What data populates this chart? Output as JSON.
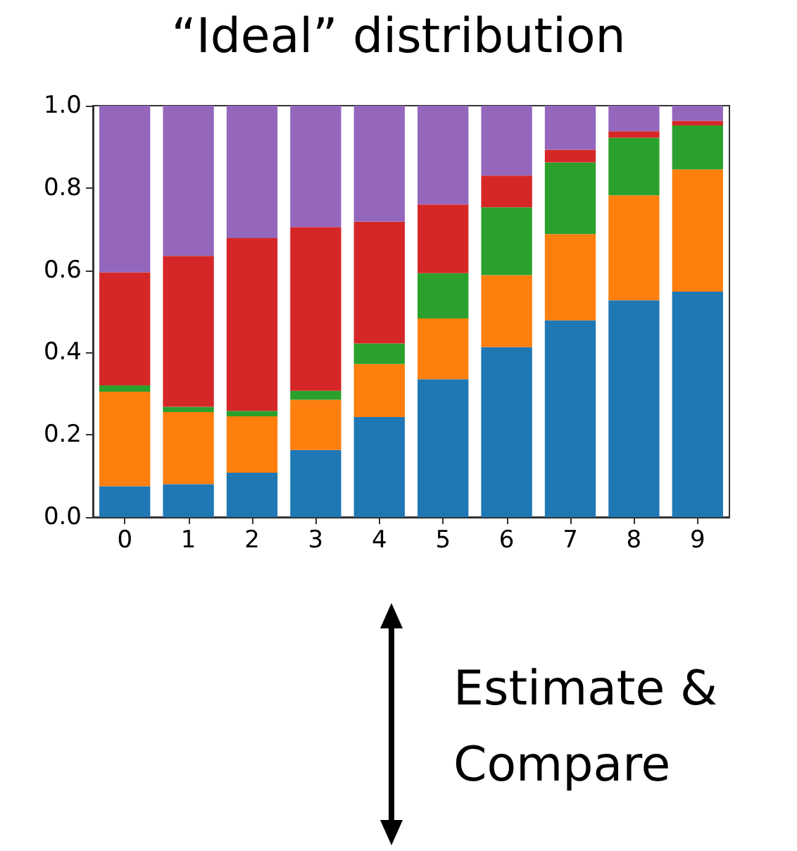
{
  "chart_data": {
    "type": "bar",
    "title": "“Ideal” distribution",
    "stacked": true,
    "categories": [
      "0",
      "1",
      "2",
      "3",
      "4",
      "5",
      "6",
      "7",
      "8",
      "9"
    ],
    "series": [
      {
        "color": "#1f77b4",
        "values": [
          0.075,
          0.08,
          0.108,
          0.163,
          0.243,
          0.335,
          0.413,
          0.478,
          0.527,
          0.548
        ]
      },
      {
        "color": "#ff7f0e",
        "values": [
          0.23,
          0.175,
          0.137,
          0.122,
          0.129,
          0.148,
          0.175,
          0.21,
          0.255,
          0.297
        ]
      },
      {
        "color": "#2ca02c",
        "values": [
          0.015,
          0.013,
          0.013,
          0.022,
          0.05,
          0.11,
          0.165,
          0.174,
          0.14,
          0.107
        ]
      },
      {
        "color": "#d62728",
        "values": [
          0.275,
          0.367,
          0.42,
          0.398,
          0.296,
          0.167,
          0.077,
          0.031,
          0.016,
          0.011
        ]
      },
      {
        "color": "#9467bd",
        "values": [
          0.405,
          0.365,
          0.322,
          0.295,
          0.282,
          0.24,
          0.17,
          0.107,
          0.062,
          0.037
        ]
      }
    ],
    "ylim": [
      0,
      1
    ],
    "yticks": [
      {
        "value": 0,
        "label": "0.0"
      },
      0.2,
      0.4,
      0.6,
      0.8,
      {
        "value": 1,
        "label": "1.0"
      }
    ],
    "grid": false,
    "annotations": [
      "Estimate & Compare"
    ]
  }
}
